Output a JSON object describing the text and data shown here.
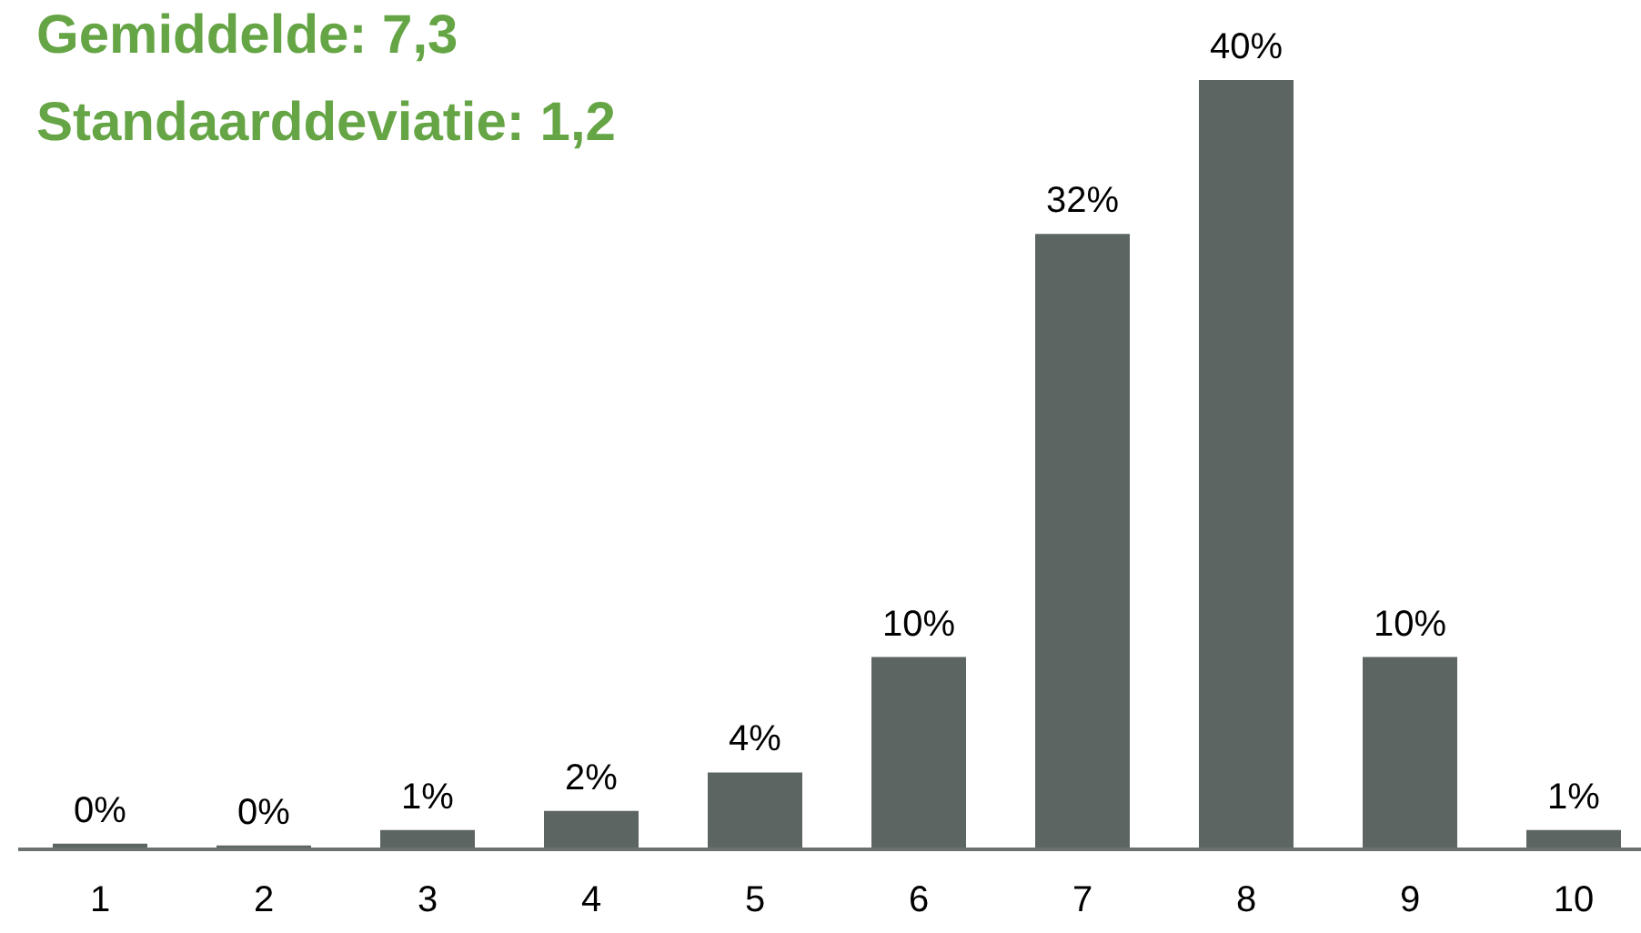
{
  "chart_data": {
    "type": "bar",
    "title": "Gemiddelde: 7,3",
    "subtitle": "Standaarddeviatie: 1,2",
    "categories": [
      "1",
      "2",
      "3",
      "4",
      "5",
      "6",
      "7",
      "8",
      "9",
      "10"
    ],
    "values": [
      0.3,
      0.2,
      1,
      2,
      4,
      10,
      32,
      40,
      10,
      1
    ],
    "value_labels": [
      "0%",
      "0%",
      "1%",
      "2%",
      "4%",
      "10%",
      "32%",
      "40%",
      "10%",
      "1%"
    ],
    "color": "#5d6562"
  }
}
